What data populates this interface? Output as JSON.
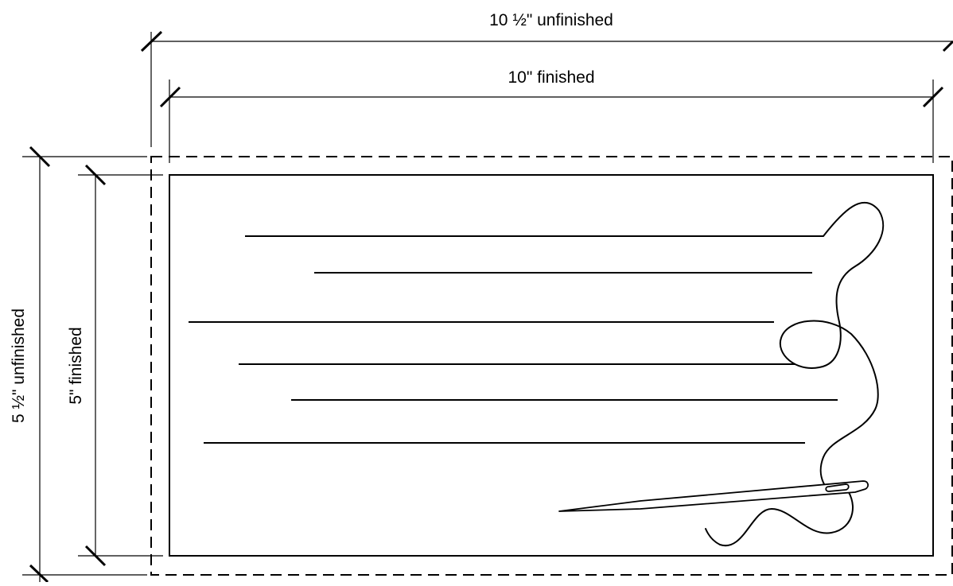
{
  "dimensions": {
    "width_unfinished_label": "10 ½\" unfinished",
    "width_finished_label": "10\" finished",
    "height_unfinished_label": "5 ½\" unfinished",
    "height_finished_label": "5\" finished"
  },
  "illustration": {
    "icon": "needle-and-thread-icon"
  }
}
